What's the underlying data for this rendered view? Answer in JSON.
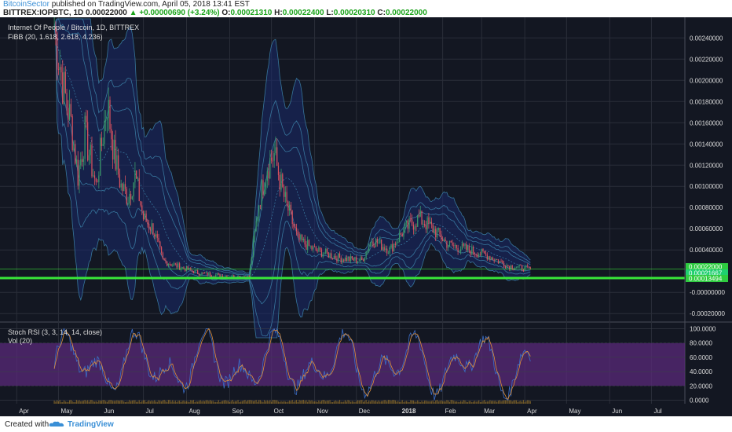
{
  "header": {
    "author": "BitcoinSector",
    "published": " published on TradingView.com, April 05, 2018 13:41 EST",
    "symbol": "BITTREX:IOPBTC, 1D",
    "last": "0.00022000",
    "change": "▲ +0.00000690 (+3.24%)",
    "o_label": "O:",
    "o": "0.00021310",
    "h_label": "H:",
    "h": "0.00022400",
    "l_label": "L:",
    "l": "0.00020310",
    "c_label": "C:",
    "c": "0.00022000"
  },
  "footer": {
    "created": "Created with",
    "brand": "TradingView"
  },
  "colors": {
    "background": "#131722",
    "upCandle": "#3a9a6a",
    "downCandle": "#d9525f",
    "bands": "#3b7fa6",
    "bandFill": "#1a2a6b",
    "supportLine": "#39e639",
    "rsiBand": "#5a2a7a"
  },
  "chart_data": [
    {
      "type": "candlestick",
      "title": "Internet Of People / Bitcoin, 1D, BITTREX",
      "indicator": "FiBB (20, 1.618, 2.618, 4.236)",
      "y_ticks": [
        "0.00240000",
        "0.00220000",
        "0.00200000",
        "0.00180000",
        "0.00160000",
        "0.00140000",
        "0.00120000",
        "0.00100000",
        "0.00080000",
        "0.00060000",
        "0.00040000",
        "-0.00000000",
        "-0.00020000"
      ],
      "ylim": [
        -0.00028,
        0.00258
      ],
      "x_ticks": [
        "Apr",
        "May",
        "Jun",
        "Jul",
        "Aug",
        "Sep",
        "Oct",
        "Nov",
        "Dec",
        "2018",
        "Feb",
        "Mar",
        "Apr",
        "May",
        "Jun",
        "Jul"
      ],
      "price_markers": [
        {
          "label": "0.00022000",
          "color": "#2ecc40"
        },
        {
          "label": "0.00021667",
          "color": "#1fcf6f"
        },
        {
          "label": "0.00013494",
          "color": "#2ecc40"
        }
      ],
      "support_level": 0.000135,
      "close_path": [
        {
          "m": "2017-04-28",
          "v": 0.0025
        },
        {
          "m": "2017-05-05",
          "v": 0.0019
        },
        {
          "m": "2017-05-10",
          "v": 0.0016
        },
        {
          "m": "2017-05-15",
          "v": 0.0011
        },
        {
          "m": "2017-05-20",
          "v": 0.0015
        },
        {
          "m": "2017-05-28",
          "v": 0.001
        },
        {
          "m": "2017-06-05",
          "v": 0.0018
        },
        {
          "m": "2017-06-10",
          "v": 0.0013
        },
        {
          "m": "2017-06-15",
          "v": 0.001
        },
        {
          "m": "2017-06-20",
          "v": 0.0009
        },
        {
          "m": "2017-06-25",
          "v": 0.0011
        },
        {
          "m": "2017-07-01",
          "v": 0.0007
        },
        {
          "m": "2017-07-08",
          "v": 0.0006
        },
        {
          "m": "2017-07-15",
          "v": 0.0003
        },
        {
          "m": "2017-07-25",
          "v": 0.00025
        },
        {
          "m": "2017-08-10",
          "v": 0.00018
        },
        {
          "m": "2017-09-01",
          "v": 0.00015
        },
        {
          "m": "2017-09-15",
          "v": 0.00015
        },
        {
          "m": "2017-09-22",
          "v": 0.00085
        },
        {
          "m": "2017-09-28",
          "v": 0.0012
        },
        {
          "m": "2017-10-03",
          "v": 0.0013
        },
        {
          "m": "2017-10-10",
          "v": 0.0009
        },
        {
          "m": "2017-10-20",
          "v": 0.0005
        },
        {
          "m": "2017-11-01",
          "v": 0.0004
        },
        {
          "m": "2017-11-20",
          "v": 0.00032
        },
        {
          "m": "2017-12-05",
          "v": 0.0003
        },
        {
          "m": "2017-12-12",
          "v": 0.0005
        },
        {
          "m": "2017-12-25",
          "v": 0.0004
        },
        {
          "m": "2018-01-05",
          "v": 0.0006
        },
        {
          "m": "2018-01-15",
          "v": 0.0007
        },
        {
          "m": "2018-01-25",
          "v": 0.0006
        },
        {
          "m": "2018-02-05",
          "v": 0.00045
        },
        {
          "m": "2018-02-20",
          "v": 0.0004
        },
        {
          "m": "2018-03-05",
          "v": 0.00035
        },
        {
          "m": "2018-03-20",
          "v": 0.00025
        },
        {
          "m": "2018-04-05",
          "v": 0.00022
        }
      ]
    },
    {
      "type": "line",
      "title": "Stoch RSI (3, 3, 14, 14, close)",
      "indicator": "Vol (20)",
      "y_ticks": [
        "100.0000",
        "80.0000",
        "60.0000",
        "40.0000",
        "20.0000",
        "0.0000"
      ],
      "ylim": [
        -5,
        105
      ],
      "band": [
        20,
        80
      ]
    }
  ]
}
